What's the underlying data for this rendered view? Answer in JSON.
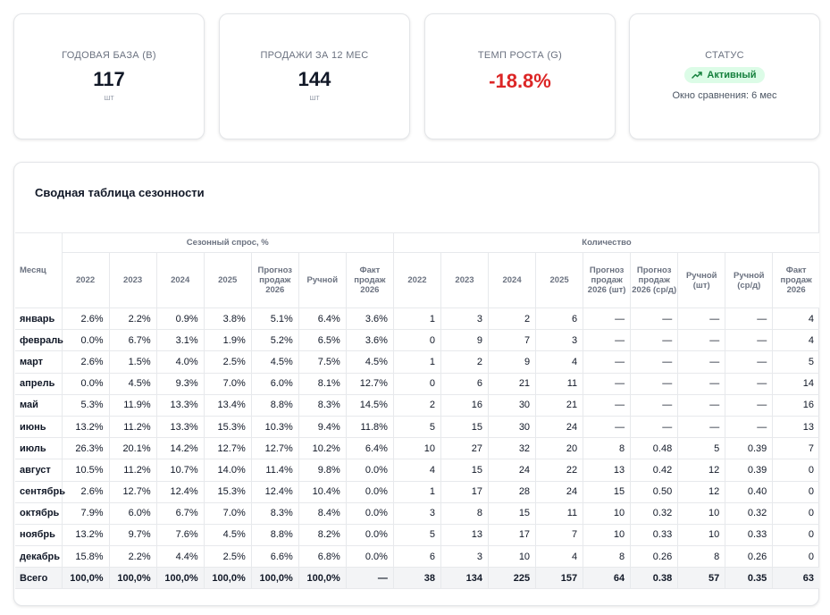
{
  "kpis": {
    "base": {
      "label": "Годовая база (B)",
      "value": "117",
      "unit": "шт"
    },
    "sales": {
      "label": "Продажи за 12 мес",
      "value": "144",
      "unit": "шт"
    },
    "growth": {
      "label": "Темп роста (G)",
      "value": "-18.8%",
      "color": "#dc2626"
    },
    "status": {
      "label": "Статус",
      "badge": "Активный",
      "badge_icon": "trending-up-icon",
      "note": "Окно сравнения: 6 мес"
    }
  },
  "table": {
    "title": "Сводная таблица сезонности",
    "month_header": "Месяц",
    "group_headers": {
      "seasonal": "Сезонный спрос, %",
      "quantity": "Количество"
    },
    "columns": {
      "seasonal": [
        "2022",
        "2023",
        "2024",
        "2025",
        "Прогноз продаж 2026",
        "Ручной",
        "Факт продаж 2026"
      ],
      "quantity": [
        "2022",
        "2023",
        "2024",
        "2025",
        "Прогноз продаж 2026 (шт)",
        "Прогноз продаж 2026 (ср/д)",
        "Ручной (шт)",
        "Ручной (ср/д)",
        "Факт продаж 2026"
      ]
    },
    "rows": [
      {
        "month": "январь",
        "seasonal": [
          "2.6%",
          "2.2%",
          "0.9%",
          "3.8%",
          "5.1%",
          "6.4%",
          "3.6%"
        ],
        "quantity": [
          "1",
          "3",
          "2",
          "6",
          "—",
          "—",
          "—",
          "—",
          "4"
        ]
      },
      {
        "month": "февраль",
        "seasonal": [
          "0.0%",
          "6.7%",
          "3.1%",
          "1.9%",
          "5.2%",
          "6.5%",
          "3.6%"
        ],
        "quantity": [
          "0",
          "9",
          "7",
          "3",
          "—",
          "—",
          "—",
          "—",
          "4"
        ]
      },
      {
        "month": "март",
        "seasonal": [
          "2.6%",
          "1.5%",
          "4.0%",
          "2.5%",
          "4.5%",
          "7.5%",
          "4.5%"
        ],
        "quantity": [
          "1",
          "2",
          "9",
          "4",
          "—",
          "—",
          "—",
          "—",
          "5"
        ]
      },
      {
        "month": "апрель",
        "seasonal": [
          "0.0%",
          "4.5%",
          "9.3%",
          "7.0%",
          "6.0%",
          "8.1%",
          "12.7%"
        ],
        "quantity": [
          "0",
          "6",
          "21",
          "11",
          "—",
          "—",
          "—",
          "—",
          "14"
        ]
      },
      {
        "month": "май",
        "seasonal": [
          "5.3%",
          "11.9%",
          "13.3%",
          "13.4%",
          "8.8%",
          "8.3%",
          "14.5%"
        ],
        "quantity": [
          "2",
          "16",
          "30",
          "21",
          "—",
          "—",
          "—",
          "—",
          "16"
        ]
      },
      {
        "month": "июнь",
        "seasonal": [
          "13.2%",
          "11.2%",
          "13.3%",
          "15.3%",
          "10.3%",
          "9.4%",
          "11.8%"
        ],
        "quantity": [
          "5",
          "15",
          "30",
          "24",
          "—",
          "—",
          "—",
          "—",
          "13"
        ]
      },
      {
        "month": "июль",
        "seasonal": [
          "26.3%",
          "20.1%",
          "14.2%",
          "12.7%",
          "12.7%",
          "10.2%",
          "6.4%"
        ],
        "quantity": [
          "10",
          "27",
          "32",
          "20",
          "8",
          "0.48",
          "5",
          "0.39",
          "7"
        ]
      },
      {
        "month": "август",
        "seasonal": [
          "10.5%",
          "11.2%",
          "10.7%",
          "14.0%",
          "11.4%",
          "9.8%",
          "0.0%"
        ],
        "quantity": [
          "4",
          "15",
          "24",
          "22",
          "13",
          "0.42",
          "12",
          "0.39",
          "0"
        ]
      },
      {
        "month": "сентябрь",
        "seasonal": [
          "2.6%",
          "12.7%",
          "12.4%",
          "15.3%",
          "12.4%",
          "10.4%",
          "0.0%"
        ],
        "quantity": [
          "1",
          "17",
          "28",
          "24",
          "15",
          "0.50",
          "12",
          "0.40",
          "0"
        ]
      },
      {
        "month": "октябрь",
        "seasonal": [
          "7.9%",
          "6.0%",
          "6.7%",
          "7.0%",
          "8.3%",
          "8.4%",
          "0.0%"
        ],
        "quantity": [
          "3",
          "8",
          "15",
          "11",
          "10",
          "0.32",
          "10",
          "0.32",
          "0"
        ]
      },
      {
        "month": "ноябрь",
        "seasonal": [
          "13.2%",
          "9.7%",
          "7.6%",
          "4.5%",
          "8.8%",
          "8.2%",
          "0.0%"
        ],
        "quantity": [
          "5",
          "13",
          "17",
          "7",
          "10",
          "0.33",
          "10",
          "0.33",
          "0"
        ]
      },
      {
        "month": "декабрь",
        "seasonal": [
          "15.8%",
          "2.2%",
          "4.4%",
          "2.5%",
          "6.6%",
          "6.8%",
          "0.0%"
        ],
        "quantity": [
          "6",
          "3",
          "10",
          "4",
          "8",
          "0.26",
          "8",
          "0.26",
          "0"
        ]
      }
    ],
    "total": {
      "month": "Всего",
      "seasonal": [
        "100,0%",
        "100,0%",
        "100,0%",
        "100,0%",
        "100,0%",
        "100,0%",
        "—"
      ],
      "quantity": [
        "38",
        "134",
        "225",
        "157",
        "64",
        "0.38",
        "57",
        "0.35",
        "63"
      ]
    }
  }
}
